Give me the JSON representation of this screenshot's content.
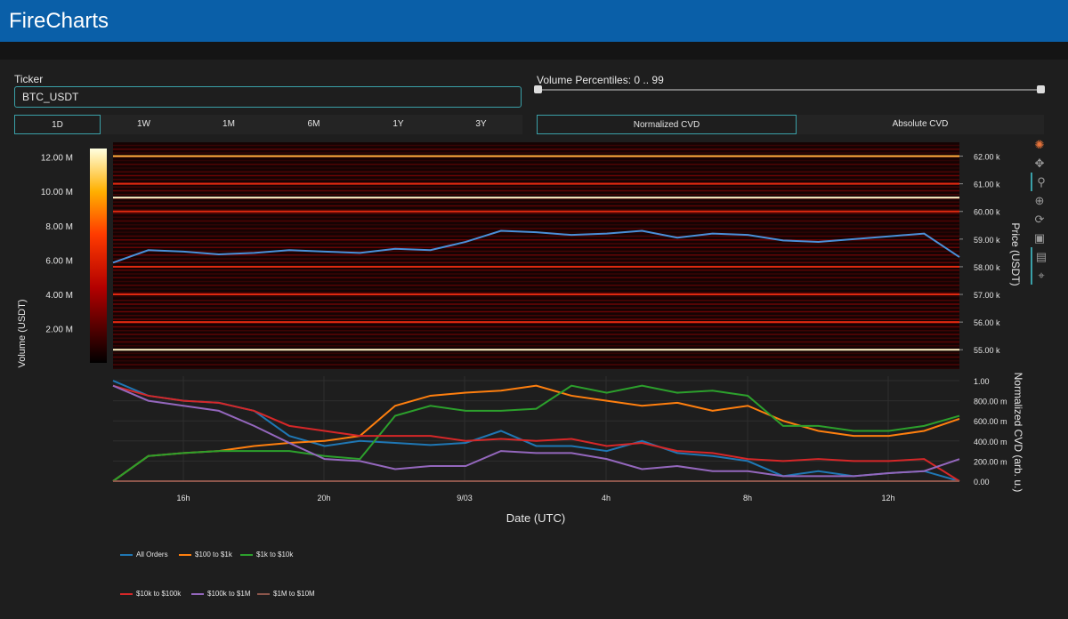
{
  "app": {
    "title": "FireCharts"
  },
  "ticker": {
    "label": "Ticker",
    "value": "BTC_USDT"
  },
  "timeframes": [
    "1D",
    "1W",
    "1M",
    "6M",
    "1Y",
    "3Y"
  ],
  "timeframe_selected": "1D",
  "volume_percentiles": {
    "label": "Volume Percentiles: 0 .. 99",
    "low": 0,
    "high": 99
  },
  "cvd_modes": [
    "Normalized CVD",
    "Absolute CVD"
  ],
  "cvd_selected": "Normalized CVD",
  "colors": {
    "header": "#0a5fa8",
    "accent": "#3aa0a8",
    "price_line": "#4a90d9"
  },
  "toolbar_icons": [
    "plotly-logo-icon",
    "pan-icon",
    "zoom-icon",
    "zoom-in-out-icon",
    "reset-icon",
    "save-icon",
    "hover-icon",
    "spike-icon"
  ],
  "chart_data": [
    {
      "type": "heatmap",
      "title": "",
      "ylabel": "Price (USDT)",
      "colorbar_label": "Volume (USDT)",
      "colorbar_ticks": [
        "2.00 M",
        "4.00 M",
        "6.00 M",
        "8.00 M",
        "10.00 M",
        "12.00 M"
      ],
      "colorbar_range": [
        0,
        12.5
      ],
      "price_ticks": [
        "55.00 k",
        "56.00 k",
        "57.00 k",
        "58.00 k",
        "59.00 k",
        "60.00 k",
        "61.00 k",
        "62.00 k"
      ],
      "ylim": [
        54.3,
        62.5
      ],
      "bright_levels": [
        {
          "price": 55.0,
          "intensity": 0.95
        },
        {
          "price": 56.0,
          "intensity": 0.55
        },
        {
          "price": 57.0,
          "intensity": 0.6
        },
        {
          "price": 58.0,
          "intensity": 0.5
        },
        {
          "price": 60.0,
          "intensity": 0.6
        },
        {
          "price": 60.5,
          "intensity": 1.0
        },
        {
          "price": 61.0,
          "intensity": 0.5
        },
        {
          "price": 62.0,
          "intensity": 0.85
        }
      ],
      "price_series": {
        "name": "Price",
        "x": [
          0,
          1,
          2,
          3,
          4,
          5,
          6,
          7,
          8,
          9,
          10,
          11,
          12,
          13,
          14,
          15,
          16,
          17,
          18,
          19,
          20,
          21,
          22,
          23,
          24
        ],
        "y": [
          58.15,
          58.6,
          58.55,
          58.45,
          58.5,
          58.6,
          58.55,
          58.5,
          58.65,
          58.6,
          58.9,
          59.3,
          59.25,
          59.15,
          59.2,
          59.3,
          59.05,
          59.2,
          59.15,
          58.95,
          58.9,
          59.0,
          59.1,
          59.2,
          58.35
        ]
      }
    },
    {
      "type": "line",
      "xlabel": "Date (UTC)",
      "ylabel": "Normalized CVD (arb. u.)",
      "x_ticks": [
        "16h",
        "20h",
        "9/03",
        "4h",
        "8h",
        "12h"
      ],
      "y_ticks": [
        "0.00",
        "200.00 m",
        "400.00 m",
        "600.00 m",
        "800.00 m",
        "1.00"
      ],
      "ylim": [
        0,
        1
      ],
      "x": [
        0,
        1,
        2,
        3,
        4,
        5,
        6,
        7,
        8,
        9,
        10,
        11,
        12,
        13,
        14,
        15,
        16,
        17,
        18,
        19,
        20,
        21,
        22,
        23,
        24
      ],
      "series": [
        {
          "name": "All Orders",
          "color": "#1f77b4",
          "values": [
            1.0,
            0.85,
            0.8,
            0.78,
            0.7,
            0.45,
            0.35,
            0.4,
            0.38,
            0.36,
            0.38,
            0.5,
            0.35,
            0.35,
            0.3,
            0.4,
            0.28,
            0.25,
            0.2,
            0.05,
            0.1,
            0.05,
            0.08,
            0.1,
            0.0
          ]
        },
        {
          "name": "$100 to $1k",
          "color": "#ff7f0e",
          "values": [
            0.0,
            0.25,
            0.28,
            0.3,
            0.35,
            0.38,
            0.4,
            0.45,
            0.75,
            0.85,
            0.88,
            0.9,
            0.95,
            0.85,
            0.8,
            0.75,
            0.78,
            0.7,
            0.75,
            0.6,
            0.5,
            0.45,
            0.45,
            0.5,
            0.62
          ]
        },
        {
          "name": "$1k to $10k",
          "color": "#2ca02c",
          "values": [
            0.0,
            0.25,
            0.28,
            0.3,
            0.3,
            0.3,
            0.25,
            0.22,
            0.65,
            0.75,
            0.7,
            0.7,
            0.72,
            0.95,
            0.88,
            0.95,
            0.88,
            0.9,
            0.85,
            0.55,
            0.55,
            0.5,
            0.5,
            0.55,
            0.65
          ]
        },
        {
          "name": "$10k to $100k",
          "color": "#d62728",
          "values": [
            0.95,
            0.85,
            0.8,
            0.78,
            0.7,
            0.55,
            0.5,
            0.45,
            0.45,
            0.45,
            0.4,
            0.42,
            0.4,
            0.42,
            0.35,
            0.38,
            0.3,
            0.28,
            0.22,
            0.2,
            0.22,
            0.2,
            0.2,
            0.22,
            0.0
          ]
        },
        {
          "name": "$100k to $1M",
          "color": "#9467bd",
          "values": [
            0.95,
            0.8,
            0.75,
            0.7,
            0.55,
            0.38,
            0.22,
            0.2,
            0.12,
            0.15,
            0.15,
            0.3,
            0.28,
            0.28,
            0.22,
            0.12,
            0.15,
            0.1,
            0.1,
            0.05,
            0.05,
            0.05,
            0.08,
            0.1,
            0.22
          ]
        },
        {
          "name": "$1M to $10M",
          "color": "#8c564b",
          "values": [
            0.0,
            0.0,
            0.0,
            0.0,
            0.0,
            0.0,
            0.0,
            0.0,
            0.0,
            0.0,
            0.0,
            0.0,
            0.0,
            0.0,
            0.0,
            0.0,
            0.0,
            0.0,
            0.0,
            0.0,
            0.0,
            0.0,
            0.0,
            0.0,
            0.0
          ]
        }
      ]
    }
  ]
}
